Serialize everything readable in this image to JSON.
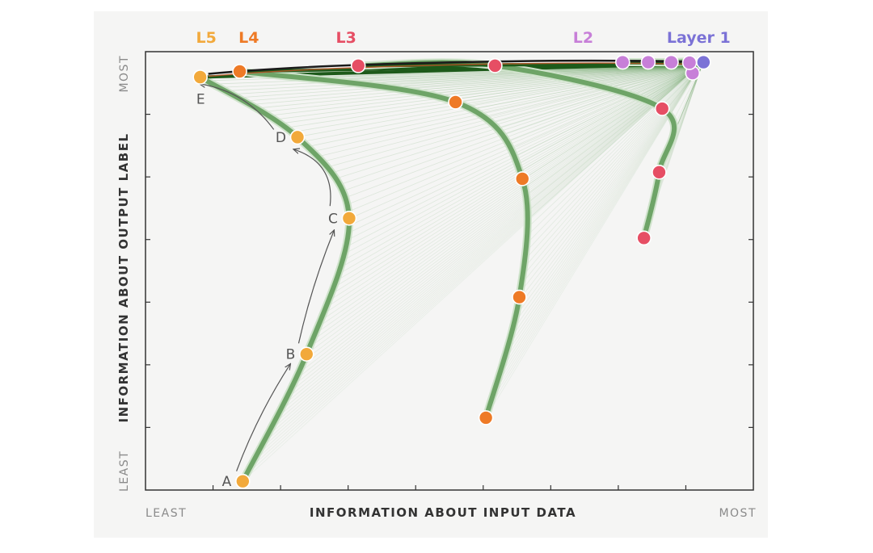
{
  "chart_data": {
    "type": "line",
    "xlabel": "INFORMATION ABOUT INPUT DATA",
    "ylabel": "INFORMATION ABOUT OUTPUT LABEL",
    "x_axis_ends": {
      "low": "LEAST",
      "high": "MOST"
    },
    "y_axis_ends": {
      "low": "LEAST",
      "high": "MOST"
    },
    "xlim": [
      0,
      1
    ],
    "ylim": [
      0,
      1
    ],
    "grid": false,
    "layer_labels": [
      {
        "text": "L5",
        "color": "#f2a93b",
        "x": 0.1
      },
      {
        "text": "L4",
        "color": "#ee7a26",
        "x": 0.17
      },
      {
        "text": "L3",
        "color": "#e64e64",
        "x": 0.33
      },
      {
        "text": "L2",
        "color": "#c77fd8",
        "x": 0.72
      },
      {
        "text": "Layer 1",
        "color": "#7b72d6",
        "x": 0.91
      }
    ],
    "series": [
      {
        "layer": "L5",
        "color": "#f2a93b",
        "points": [
          {
            "label": "A",
            "x": 0.16,
            "y": 0.02
          },
          {
            "label": "B",
            "x": 0.265,
            "y": 0.31
          },
          {
            "label": "C",
            "x": 0.335,
            "y": 0.62
          },
          {
            "label": "D",
            "x": 0.25,
            "y": 0.805
          },
          {
            "label": "E",
            "x": 0.09,
            "y": 0.942
          }
        ]
      },
      {
        "layer": "L4",
        "color": "#ee7a26",
        "points": [
          {
            "x": 0.56,
            "y": 0.165
          },
          {
            "x": 0.615,
            "y": 0.44
          },
          {
            "x": 0.62,
            "y": 0.71
          },
          {
            "x": 0.51,
            "y": 0.885
          },
          {
            "x": 0.155,
            "y": 0.955
          }
        ]
      },
      {
        "layer": "L3",
        "color": "#e64e64",
        "points": [
          {
            "x": 0.82,
            "y": 0.575
          },
          {
            "x": 0.845,
            "y": 0.725
          },
          {
            "x": 0.85,
            "y": 0.87
          },
          {
            "x": 0.575,
            "y": 0.968
          },
          {
            "x": 0.35,
            "y": 0.968
          }
        ]
      },
      {
        "layer": "L2",
        "color": "#c77fd8",
        "points": [
          {
            "x": 0.9,
            "y": 0.951
          },
          {
            "x": 0.895,
            "y": 0.975
          },
          {
            "x": 0.865,
            "y": 0.976
          },
          {
            "x": 0.827,
            "y": 0.976
          },
          {
            "x": 0.785,
            "y": 0.976
          }
        ]
      },
      {
        "layer": "Layer 1",
        "color": "#7b72d6",
        "points": [
          {
            "x": 0.918,
            "y": 0.976
          }
        ]
      }
    ]
  }
}
